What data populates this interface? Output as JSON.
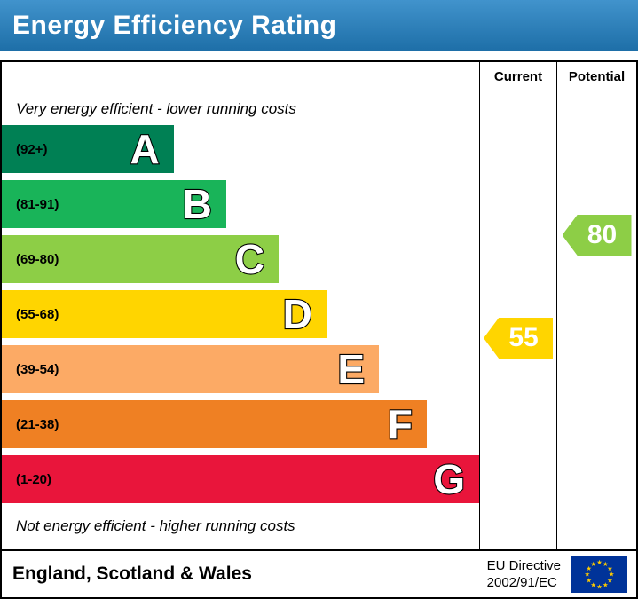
{
  "title": "Energy Efficiency Rating",
  "header": {
    "current_label": "Current",
    "potential_label": "Potential"
  },
  "captions": {
    "top": "Very energy efficient - lower running costs",
    "bottom": "Not energy efficient - higher running costs"
  },
  "footer": {
    "region": "England, Scotland & Wales",
    "directive_line1": "EU Directive",
    "directive_line2": "2002/91/EC",
    "flag_icon": "eu-flag"
  },
  "chart_data": {
    "type": "bar",
    "title": "Energy Efficiency Rating",
    "scale_min": 1,
    "scale_max": 100,
    "bands": [
      {
        "letter": "A",
        "range": "(92+)",
        "lo": 92,
        "hi": 100,
        "color": "#008054",
        "width_pct": 36
      },
      {
        "letter": "B",
        "range": "(81-91)",
        "lo": 81,
        "hi": 91,
        "color": "#19b459",
        "width_pct": 47
      },
      {
        "letter": "C",
        "range": "(69-80)",
        "lo": 69,
        "hi": 80,
        "color": "#8dce46",
        "width_pct": 58
      },
      {
        "letter": "D",
        "range": "(55-68)",
        "lo": 55,
        "hi": 68,
        "color": "#ffd500",
        "width_pct": 68
      },
      {
        "letter": "E",
        "range": "(39-54)",
        "lo": 39,
        "hi": 54,
        "color": "#fcaa65",
        "width_pct": 79
      },
      {
        "letter": "F",
        "range": "(21-38)",
        "lo": 21,
        "hi": 38,
        "color": "#ef8023",
        "width_pct": 89
      },
      {
        "letter": "G",
        "range": "(1-20)",
        "lo": 1,
        "hi": 20,
        "color": "#e9153b",
        "width_pct": 100
      }
    ],
    "current": 55,
    "potential": 80,
    "current_color": "#ffd500",
    "potential_color": "#8dce46"
  }
}
